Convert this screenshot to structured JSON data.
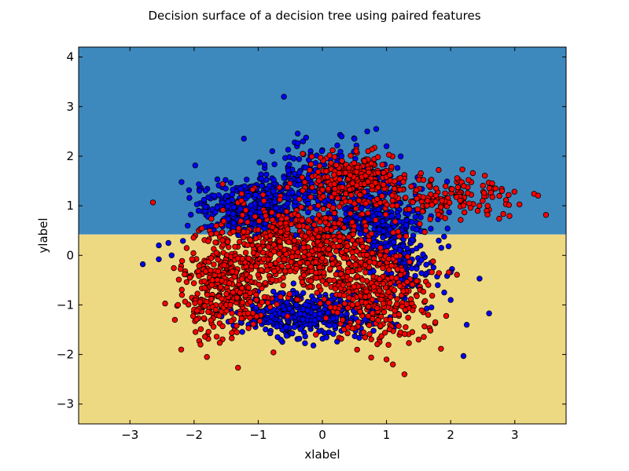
{
  "chart_data": {
    "type": "scatter",
    "title": "Decision surface of a decision tree using paired features",
    "xlabel": "xlabel",
    "ylabel": "ylabel",
    "xlim": [
      -3.8,
      3.8
    ],
    "ylim": [
      -3.4,
      4.2
    ],
    "xticks": [
      -3,
      -2,
      -1,
      0,
      1,
      2,
      3
    ],
    "yticks": [
      -3,
      -2,
      -1,
      0,
      1,
      2,
      3,
      4
    ],
    "decision_regions": [
      {
        "y_from": 0.42,
        "y_to": 4.2,
        "color": "#3d89be"
      },
      {
        "y_from": -3.4,
        "y_to": 0.42,
        "color": "#eed983"
      }
    ],
    "colors": {
      "blue_class": "#0000ff",
      "red_class": "#ff0000",
      "point_edge": "#000000",
      "frame": "#000000"
    },
    "series": [
      {
        "clusters": [
          {
            "center": [
              -1.1,
              0.95
            ],
            "spread": [
              0.45,
              0.28
            ],
            "count": 420
          },
          {
            "center": [
              -0.2,
              1.35
            ],
            "spread": [
              0.45,
              0.45
            ],
            "count": 220
          },
          {
            "center": [
              0.85,
              0.75
            ],
            "spread": [
              0.35,
              0.5
            ],
            "count": 330
          },
          {
            "center": [
              1.3,
              0.0
            ],
            "spread": [
              0.3,
              0.5
            ],
            "count": 140
          },
          {
            "center": [
              -0.2,
              -1.2
            ],
            "spread": [
              0.55,
              0.22
            ],
            "count": 420
          }
        ],
        "points": [
          [
            -0.6,
            3.2
          ],
          [
            -2.8,
            -0.18
          ],
          [
            -2.55,
            0.2
          ],
          [
            -2.4,
            0.25
          ],
          [
            -2.55,
            -0.08
          ],
          [
            -2.35,
            0.0
          ],
          [
            2.25,
            -1.4
          ],
          [
            2.6,
            -1.17
          ],
          [
            2.45,
            -0.47
          ],
          [
            2.2,
            -2.03
          ],
          [
            1.0,
            2.2
          ],
          [
            0.7,
            2.5
          ],
          [
            0.3,
            2.4
          ],
          [
            0.5,
            2.35
          ],
          [
            -0.3,
            2.3
          ],
          [
            1.8,
            -0.6
          ],
          [
            1.9,
            -0.75
          ],
          [
            2.0,
            -0.9
          ],
          [
            1.7,
            -1.05
          ],
          [
            -2.1,
            0.6
          ]
        ]
      },
      {
        "clusters": [
          {
            "center": [
              -1.5,
              -0.6
            ],
            "spread": [
              0.35,
              0.5
            ],
            "count": 380
          },
          {
            "center": [
              -0.3,
              0.15
            ],
            "spread": [
              0.65,
              0.45
            ],
            "count": 620
          },
          {
            "center": [
              0.9,
              -0.8
            ],
            "spread": [
              0.4,
              0.45
            ],
            "count": 300
          },
          {
            "center": [
              0.5,
              1.55
            ],
            "spread": [
              0.4,
              0.25
            ],
            "count": 260
          },
          {
            "center": [
              1.9,
              1.15
            ],
            "spread": [
              0.55,
              0.22
            ],
            "count": 160
          }
        ],
        "points": [
          [
            1.28,
            -2.4
          ],
          [
            1.1,
            -2.2
          ],
          [
            1.0,
            -2.1
          ],
          [
            -2.2,
            -1.9
          ],
          [
            -2.3,
            -1.3
          ],
          [
            -2.25,
            -1.0
          ],
          [
            2.8,
            1.3
          ],
          [
            2.7,
            1.35
          ],
          [
            2.5,
            1.1
          ],
          [
            1.5,
            -1.7
          ],
          [
            -0.1,
            -1.6
          ],
          [
            0.4,
            -1.45
          ],
          [
            -1.8,
            -2.05
          ],
          [
            -1.9,
            -1.8
          ],
          [
            1.65,
            -1.2
          ]
        ]
      }
    ]
  }
}
